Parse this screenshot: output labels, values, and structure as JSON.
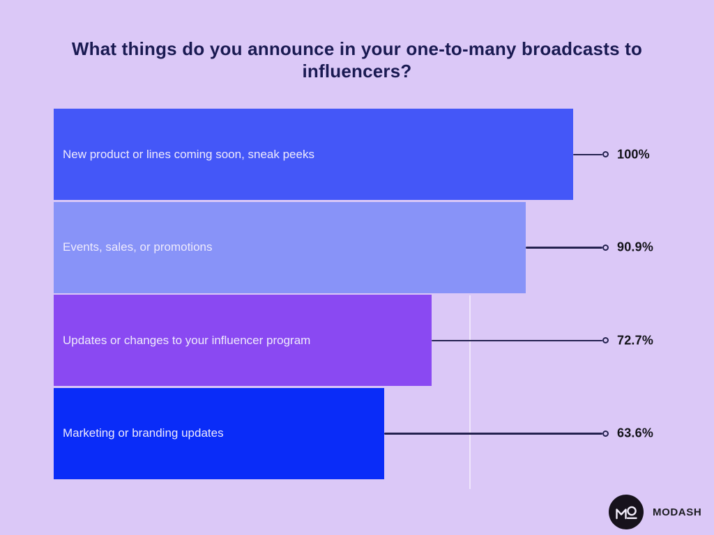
{
  "title": "What things do you announce in your one-to-many broadcasts to influencers?",
  "chart_data": {
    "type": "bar",
    "orientation": "horizontal",
    "title": "What things do you announce in your one-to-many broadcasts to influencers?",
    "categories": [
      "New product or lines coming soon, sneak peeks",
      "Events, sales, or promotions",
      "Updates or changes to your influencer program",
      "Marketing or branding updates"
    ],
    "values": [
      100,
      90.9,
      72.7,
      63.6
    ],
    "value_labels": [
      "100%",
      "90.9%",
      "72.7%",
      "63.6%"
    ],
    "bar_colors": [
      "#4457f8",
      "#8893f8",
      "#8a49f2",
      "#0a2cf8"
    ],
    "xlabel": "",
    "ylabel": "",
    "xlim": [
      0,
      100
    ],
    "grid": "single faint vertical gridline near 80%",
    "legend": "none"
  },
  "colors": {
    "background": "#dbc8f7",
    "title_text": "#1a1a52",
    "bar_label_text": "#eeeafc",
    "connector_line": "#23214f",
    "value_label_text": "#121218",
    "logo_circle": "#17121c"
  },
  "branding": {
    "logo_monogram": "MO",
    "logo_text": "MODASH"
  }
}
